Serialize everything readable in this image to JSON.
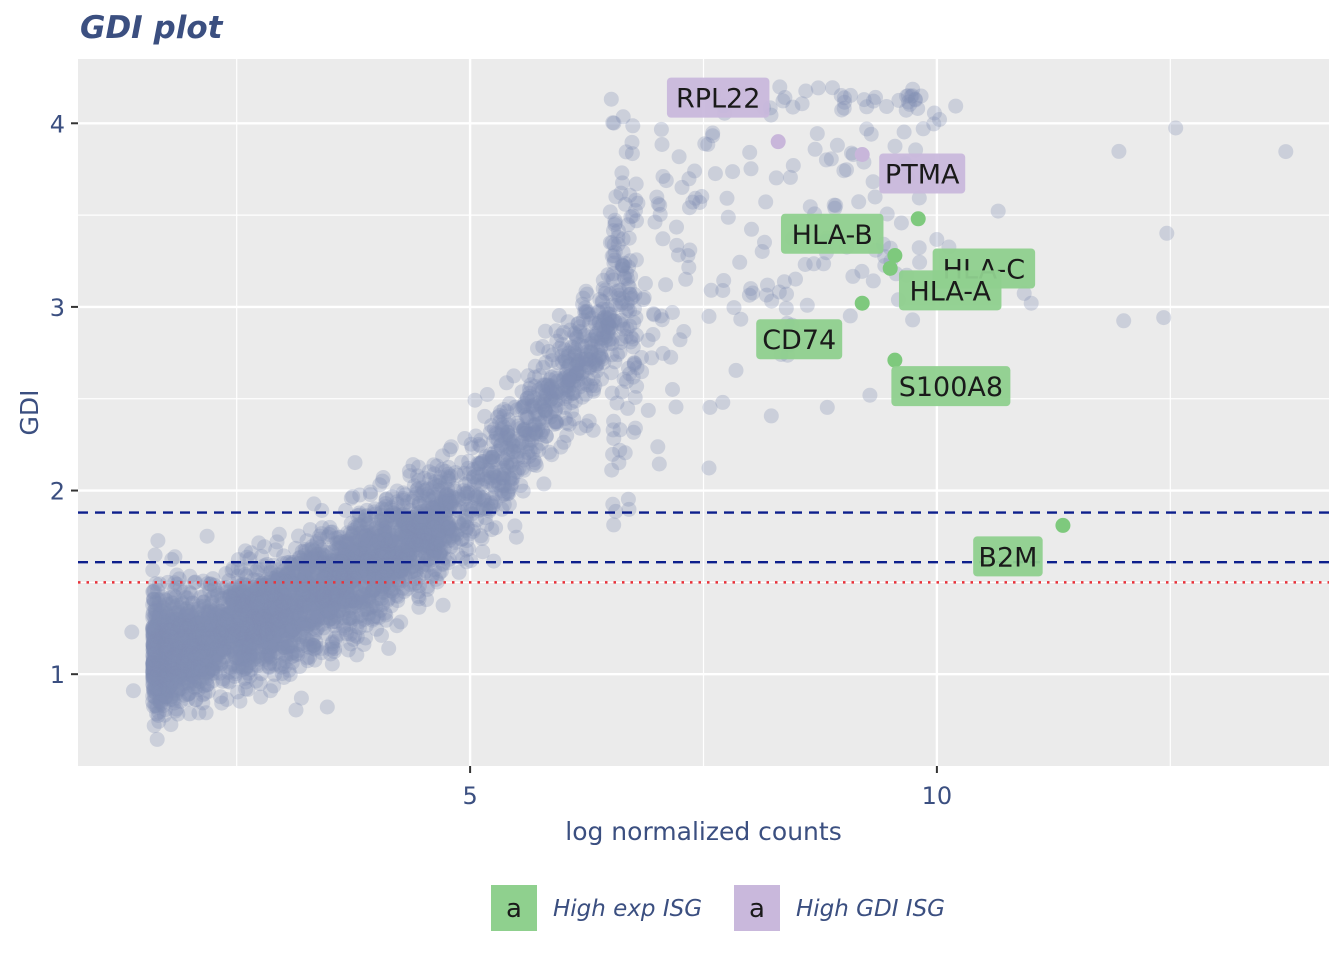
{
  "chart_data": {
    "type": "scatter",
    "title": "GDI plot",
    "xlabel": "log normalized counts",
    "ylabel": "GDI",
    "xlim": [
      0.8,
      14.2
    ],
    "ylim": [
      0.5,
      4.35
    ],
    "x_ticks": [
      5,
      10
    ],
    "x_minor": [
      2.5,
      7.5,
      12.5
    ],
    "y_ticks": [
      1,
      2,
      3,
      4
    ],
    "y_minor": [
      1.5,
      2.5,
      3.5
    ],
    "grid": true,
    "hlines": [
      {
        "y": 1.88,
        "style": "dashed",
        "color": "#0d1f8c"
      },
      {
        "y": 1.61,
        "style": "dashed",
        "color": "#0d1f8c"
      },
      {
        "y": 1.5,
        "style": "dotted",
        "color": "#e8323a"
      }
    ],
    "background_genes": {
      "color": "#8290b3",
      "trend": {
        "x": [
          1.7,
          3,
          4,
          5,
          6,
          6.5,
          7
        ],
        "y": [
          1.1,
          1.35,
          1.6,
          1.95,
          2.6,
          2.9,
          3.2
        ]
      },
      "approx_count": 4000
    },
    "highlighted": [
      {
        "label": "RPL22",
        "x": 8.3,
        "y": 3.9,
        "group": "High GDI ISG"
      },
      {
        "label": "PTMA",
        "x": 9.2,
        "y": 3.83,
        "group": "High GDI ISG"
      },
      {
        "label": "HLA-B",
        "x": 9.8,
        "y": 3.48,
        "group": "High exp ISG"
      },
      {
        "label": "HLA-C",
        "x": 9.55,
        "y": 3.28,
        "group": "High exp ISG"
      },
      {
        "label": "HLA-A",
        "x": 9.5,
        "y": 3.21,
        "group": "High exp ISG"
      },
      {
        "label": "CD74",
        "x": 9.2,
        "y": 3.02,
        "group": "High exp ISG"
      },
      {
        "label": "S100A8",
        "x": 9.55,
        "y": 2.71,
        "group": "High exp ISG"
      },
      {
        "label": "B2M",
        "x": 11.35,
        "y": 1.81,
        "group": "High exp ISG"
      }
    ],
    "legend": {
      "position": "bottom",
      "key_text": "a",
      "items": [
        {
          "name": "High exp ISG",
          "color": "#8fd08e"
        },
        {
          "name": "High GDI ISG",
          "color": "#c9b8dc"
        }
      ]
    }
  },
  "colors": {
    "panel": "#ebebeb",
    "grid": "#ffffff",
    "text": "#3b4f80",
    "high_exp_point": "#7ec97d",
    "high_gdi_point": "#c8b6da"
  }
}
